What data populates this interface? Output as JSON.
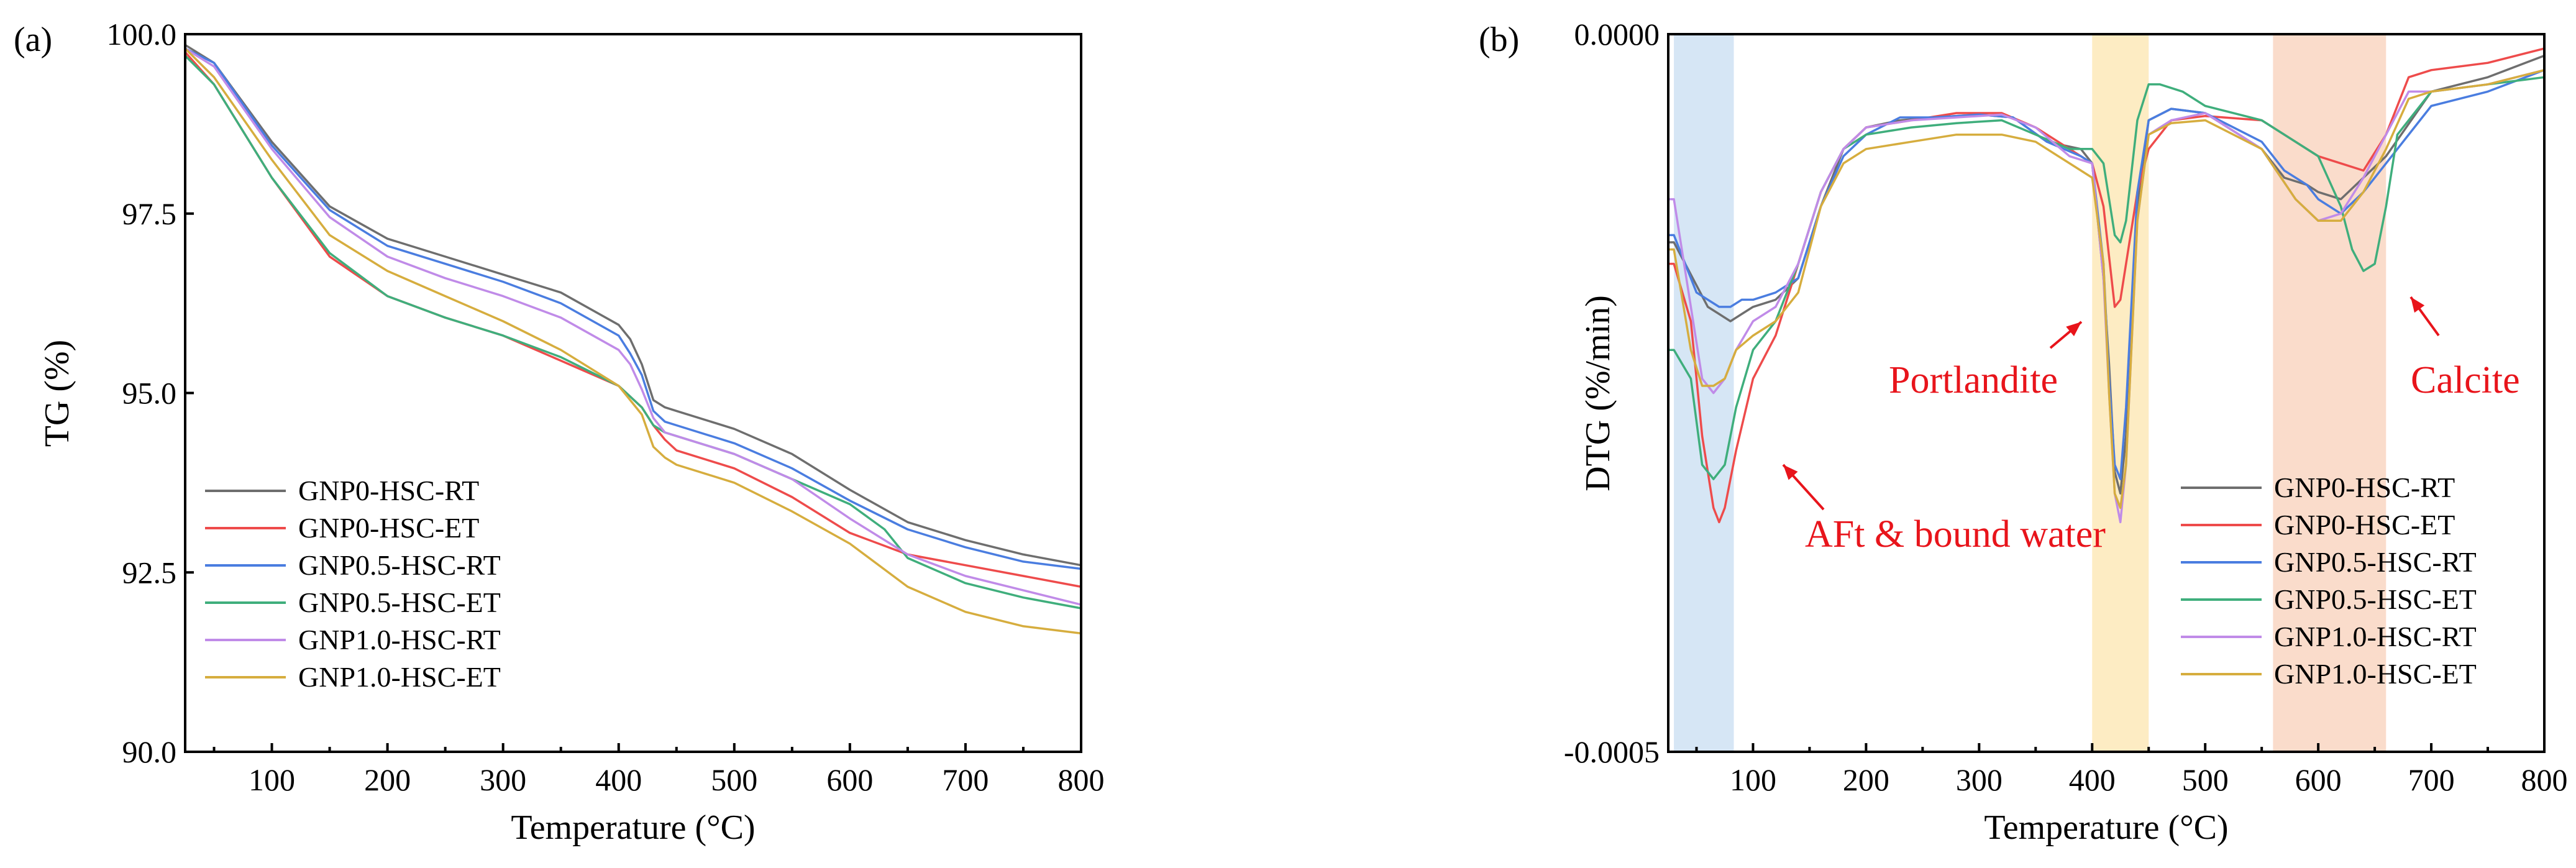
{
  "colors": {
    "GNP0-HSC-RT": "#6e6e6e",
    "GNP0-HSC-ET": "#ee4b4b",
    "GNP0.5-HSC-RT": "#4a7de0",
    "GNP0.5-HSC-ET": "#3fae7c",
    "GNP1.0-HSC-RT": "#c08be8",
    "GNP1.0-HSC-ET": "#d6ad3e",
    "band_aft": "#cfe2f3",
    "band_portlandite": "#fde9b8",
    "band_calcite": "#f9d6c2",
    "annotation": "#e8141b"
  },
  "chart_data": [
    {
      "type": "line",
      "panel_label": "(a)",
      "xlabel": "Temperature (°C)",
      "ylabel": "TG (%)",
      "xlim": [
        25,
        800
      ],
      "ylim": [
        90.0,
        100.0
      ],
      "xticks": [
        100,
        200,
        300,
        400,
        500,
        600,
        700,
        800
      ],
      "xtick_labels": [
        "100",
        "200",
        "300",
        "400",
        "500",
        "600",
        "700",
        "800"
      ],
      "yticks": [
        90.0,
        92.5,
        95.0,
        97.5,
        100.0
      ],
      "ytick_labels": [
        "90.0",
        "92.5",
        "95.0",
        "97.5",
        "100.0"
      ],
      "legend_position": "lower-left",
      "series": [
        {
          "name": "GNP0-HSC-RT",
          "x": [
            25,
            50,
            100,
            150,
            200,
            250,
            300,
            350,
            400,
            410,
            420,
            430,
            440,
            450,
            500,
            550,
            600,
            650,
            700,
            750,
            800
          ],
          "y": [
            99.85,
            99.6,
            98.5,
            97.6,
            97.15,
            96.9,
            96.65,
            96.4,
            95.95,
            95.75,
            95.4,
            94.9,
            94.8,
            94.75,
            94.5,
            94.15,
            93.65,
            93.2,
            92.95,
            92.75,
            92.6
          ]
        },
        {
          "name": "GNP0-HSC-ET",
          "x": [
            25,
            50,
            100,
            150,
            200,
            250,
            300,
            350,
            400,
            420,
            430,
            440,
            450,
            500,
            550,
            600,
            650,
            700,
            750,
            800
          ],
          "y": [
            99.75,
            99.3,
            98.0,
            96.9,
            96.35,
            96.05,
            95.8,
            95.45,
            95.1,
            94.8,
            94.55,
            94.35,
            94.2,
            93.95,
            93.55,
            93.05,
            92.75,
            92.6,
            92.45,
            92.3
          ]
        },
        {
          "name": "GNP0.5-HSC-RT",
          "x": [
            25,
            50,
            100,
            150,
            200,
            250,
            300,
            350,
            400,
            410,
            420,
            430,
            440,
            450,
            500,
            550,
            600,
            650,
            700,
            750,
            800
          ],
          "y": [
            99.8,
            99.6,
            98.45,
            97.55,
            97.05,
            96.8,
            96.55,
            96.25,
            95.8,
            95.55,
            95.25,
            94.75,
            94.6,
            94.55,
            94.3,
            93.95,
            93.5,
            93.1,
            92.85,
            92.65,
            92.55
          ]
        },
        {
          "name": "GNP0.5-HSC-ET",
          "x": [
            25,
            50,
            100,
            150,
            200,
            250,
            300,
            350,
            400,
            420,
            430,
            440,
            450,
            500,
            550,
            600,
            630,
            650,
            700,
            750,
            800
          ],
          "y": [
            99.7,
            99.3,
            98.0,
            96.95,
            96.35,
            96.05,
            95.8,
            95.5,
            95.1,
            94.8,
            94.55,
            94.45,
            94.4,
            94.15,
            93.8,
            93.45,
            93.1,
            92.7,
            92.35,
            92.15,
            92.0
          ]
        },
        {
          "name": "GNP1.0-HSC-RT",
          "x": [
            25,
            50,
            100,
            150,
            200,
            250,
            300,
            350,
            400,
            410,
            420,
            430,
            440,
            450,
            500,
            550,
            600,
            650,
            700,
            750,
            800
          ],
          "y": [
            99.8,
            99.55,
            98.4,
            97.45,
            96.9,
            96.6,
            96.35,
            96.05,
            95.6,
            95.4,
            95.05,
            94.65,
            94.45,
            94.4,
            94.15,
            93.8,
            93.25,
            92.75,
            92.45,
            92.25,
            92.05
          ]
        },
        {
          "name": "GNP1.0-HSC-ET",
          "x": [
            25,
            50,
            100,
            150,
            200,
            250,
            300,
            350,
            400,
            420,
            430,
            440,
            450,
            500,
            550,
            600,
            650,
            700,
            750,
            800
          ],
          "y": [
            99.8,
            99.4,
            98.25,
            97.2,
            96.7,
            96.35,
            96.0,
            95.6,
            95.1,
            94.7,
            94.25,
            94.1,
            94.0,
            93.75,
            93.35,
            92.9,
            92.3,
            91.95,
            91.75,
            91.65
          ]
        }
      ]
    },
    {
      "type": "line",
      "panel_label": "(b)",
      "xlabel": "Temperature (°C)",
      "ylabel": "DTG (%/min)",
      "xlim": [
        25,
        800
      ],
      "ylim": [
        -0.0005,
        0.0
      ],
      "xticks": [
        100,
        200,
        300,
        400,
        500,
        600,
        700,
        800
      ],
      "xtick_labels": [
        "100",
        "200",
        "300",
        "400",
        "500",
        "600",
        "700",
        "800"
      ],
      "yticks": [
        -0.0005,
        0.0
      ],
      "ytick_labels": [
        "-0.0005",
        "0.0000"
      ],
      "legend_position": "lower-right",
      "bands": [
        {
          "name": "aft",
          "x": [
            30,
            83
          ]
        },
        {
          "name": "portlandite",
          "x": [
            400,
            450
          ]
        },
        {
          "name": "calcite",
          "x": [
            560,
            660
          ]
        }
      ],
      "annotations": [
        {
          "text": "AFt & bound water",
          "target_x": 90
        },
        {
          "text": "Portlandite",
          "target_x": 390
        },
        {
          "text": "Calcite",
          "target_x": 660
        }
      ],
      "series": [
        {
          "name": "GNP0-HSC-RT",
          "x": [
            25,
            30,
            50,
            60,
            70,
            80,
            90,
            100,
            120,
            140,
            160,
            180,
            200,
            230,
            260,
            300,
            330,
            360,
            390,
            400,
            410,
            415,
            420,
            425,
            430,
            440,
            450,
            470,
            500,
            550,
            570,
            590,
            600,
            620,
            640,
            660,
            700,
            750,
            800
          ],
          "y": [
            -0.000145,
            -0.000145,
            -0.000175,
            -0.00019,
            -0.000195,
            -0.0002,
            -0.000195,
            -0.00019,
            -0.000185,
            -0.00017,
            -0.00012,
            -8e-05,
            -6.5e-05,
            -6e-05,
            -5.8e-05,
            -5.6e-05,
            -5.8e-05,
            -7.5e-05,
            -8e-05,
            -9e-05,
            -0.00017,
            -0.00023,
            -0.000305,
            -0.00032,
            -0.00028,
            -0.00012,
            -6e-05,
            -5.2e-05,
            -5.5e-05,
            -8e-05,
            -0.0001,
            -0.000105,
            -0.00011,
            -0.000115,
            -0.0001,
            -8.5e-05,
            -4e-05,
            -3e-05,
            -1.5e-05
          ]
        },
        {
          "name": "GNP0-HSC-ET",
          "x": [
            25,
            30,
            45,
            55,
            65,
            70,
            75,
            85,
            100,
            120,
            140,
            160,
            180,
            200,
            240,
            280,
            320,
            350,
            380,
            400,
            410,
            415,
            420,
            425,
            430,
            440,
            450,
            470,
            500,
            550,
            600,
            620,
            640,
            660,
            680,
            700,
            750,
            800
          ],
          "y": [
            -0.00016,
            -0.00016,
            -0.0002,
            -0.00028,
            -0.00033,
            -0.00034,
            -0.00033,
            -0.00029,
            -0.00024,
            -0.00021,
            -0.00016,
            -0.00011,
            -8e-05,
            -6.5e-05,
            -6e-05,
            -5.5e-05,
            -5.5e-05,
            -6.5e-05,
            -8e-05,
            -9e-05,
            -0.00012,
            -0.000155,
            -0.00019,
            -0.000185,
            -0.00016,
            -0.00011,
            -8e-05,
            -6e-05,
            -5.7e-05,
            -6e-05,
            -8.5e-05,
            -9e-05,
            -9.5e-05,
            -7e-05,
            -3e-05,
            -2.5e-05,
            -2e-05,
            -1e-05
          ]
        },
        {
          "name": "GNP0.5-HSC-RT",
          "x": [
            25,
            30,
            50,
            60,
            70,
            80,
            90,
            100,
            120,
            140,
            160,
            180,
            200,
            230,
            260,
            300,
            330,
            360,
            390,
            400,
            410,
            415,
            420,
            425,
            430,
            440,
            450,
            470,
            500,
            550,
            570,
            590,
            600,
            620,
            640,
            660,
            700,
            750,
            800
          ],
          "y": [
            -0.00014,
            -0.00014,
            -0.00018,
            -0.000185,
            -0.00019,
            -0.00019,
            -0.000185,
            -0.000185,
            -0.00018,
            -0.00017,
            -0.00012,
            -8.5e-05,
            -7e-05,
            -5.8e-05,
            -5.8e-05,
            -5.6e-05,
            -5.8e-05,
            -7.5e-05,
            -8.5e-05,
            -9e-05,
            -0.00016,
            -0.00024,
            -0.0003,
            -0.00031,
            -0.00026,
            -0.00011,
            -6e-05,
            -5.2e-05,
            -5.5e-05,
            -7.5e-05,
            -9.5e-05,
            -0.000105,
            -0.000115,
            -0.000125,
            -0.00011,
            -9e-05,
            -5e-05,
            -4e-05,
            -2.5e-05
          ]
        },
        {
          "name": "GNP0.5-HSC-ET",
          "x": [
            25,
            30,
            45,
            55,
            65,
            75,
            85,
            100,
            120,
            140,
            160,
            180,
            200,
            240,
            280,
            320,
            350,
            380,
            400,
            410,
            420,
            425,
            430,
            440,
            450,
            460,
            480,
            500,
            550,
            600,
            620,
            630,
            640,
            650,
            660,
            670,
            700,
            750,
            800
          ],
          "y": [
            -0.00022,
            -0.00022,
            -0.00024,
            -0.0003,
            -0.00031,
            -0.0003,
            -0.00026,
            -0.00022,
            -0.0002,
            -0.00016,
            -0.00011,
            -8e-05,
            -7e-05,
            -6.5e-05,
            -6.2e-05,
            -6e-05,
            -7e-05,
            -8e-05,
            -8e-05,
            -9e-05,
            -0.00014,
            -0.000145,
            -0.00013,
            -6e-05,
            -3.5e-05,
            -3.5e-05,
            -4e-05,
            -5e-05,
            -6e-05,
            -8.5e-05,
            -0.00012,
            -0.00015,
            -0.000165,
            -0.00016,
            -0.00012,
            -7e-05,
            -4e-05,
            -3.5e-05,
            -3e-05
          ]
        },
        {
          "name": "GNP1.0-HSC-RT",
          "x": [
            25,
            30,
            45,
            55,
            65,
            75,
            85,
            100,
            120,
            140,
            160,
            180,
            200,
            240,
            280,
            320,
            350,
            380,
            400,
            410,
            415,
            420,
            425,
            430,
            440,
            450,
            470,
            500,
            550,
            580,
            600,
            620,
            640,
            660,
            680,
            700,
            750,
            800
          ],
          "y": [
            -0.000115,
            -0.000115,
            -0.00019,
            -0.00024,
            -0.00025,
            -0.00024,
            -0.00022,
            -0.0002,
            -0.00019,
            -0.00016,
            -0.00011,
            -8e-05,
            -6.5e-05,
            -6e-05,
            -5.8e-05,
            -5.6e-05,
            -6.5e-05,
            -8.5e-05,
            -9e-05,
            -0.00017,
            -0.00025,
            -0.00032,
            -0.00034,
            -0.0003,
            -0.00013,
            -7e-05,
            -6e-05,
            -5.5e-05,
            -8e-05,
            -0.000115,
            -0.00013,
            -0.000125,
            -0.0001,
            -7e-05,
            -4e-05,
            -4e-05,
            -3.5e-05,
            -2.5e-05
          ]
        },
        {
          "name": "GNP1.0-HSC-ET",
          "x": [
            25,
            30,
            45,
            55,
            65,
            75,
            85,
            100,
            120,
            140,
            160,
            180,
            200,
            240,
            280,
            320,
            350,
            380,
            400,
            410,
            415,
            420,
            425,
            430,
            440,
            450,
            470,
            500,
            550,
            580,
            600,
            620,
            640,
            660,
            680,
            700,
            750,
            800
          ],
          "y": [
            -0.00015,
            -0.00015,
            -0.00022,
            -0.000245,
            -0.000245,
            -0.00024,
            -0.00022,
            -0.00021,
            -0.0002,
            -0.00018,
            -0.00012,
            -9e-05,
            -8e-05,
            -7.5e-05,
            -7e-05,
            -7e-05,
            -7.5e-05,
            -9e-05,
            -0.0001,
            -0.00016,
            -0.00025,
            -0.00032,
            -0.00033,
            -0.0003,
            -0.00013,
            -7e-05,
            -6.2e-05,
            -6e-05,
            -8e-05,
            -0.000115,
            -0.00013,
            -0.00013,
            -0.00011,
            -8e-05,
            -4.5e-05,
            -4e-05,
            -3.5e-05,
            -2.5e-05
          ]
        }
      ]
    }
  ]
}
